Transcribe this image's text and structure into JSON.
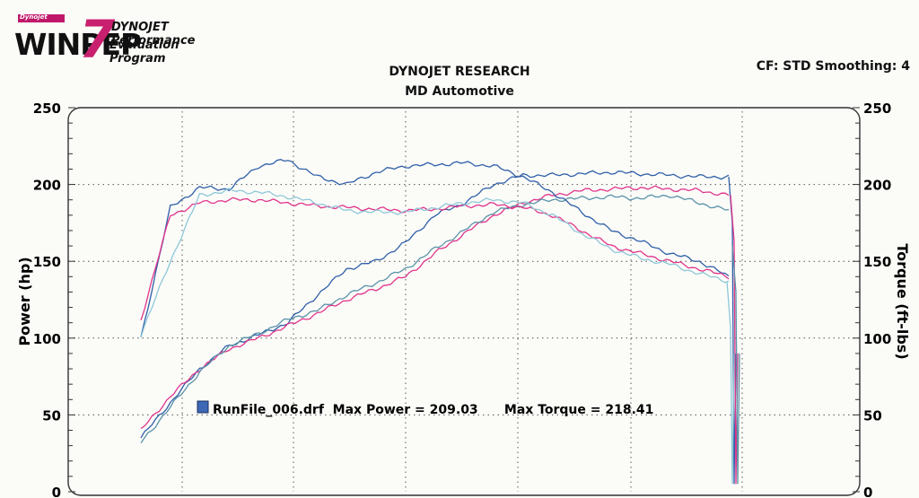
{
  "header": {
    "logo_small": "Dynojet",
    "logo_word": "WINPEP",
    "logo_number": "7",
    "logo_line1": "DYNOJET Performance",
    "logo_line2": "Evaluation Program",
    "title": "DYNOJET RESEARCH",
    "subtitle": "MD Automotive",
    "settings": "CF: STD  Smoothing: 4"
  },
  "chart_data": {
    "type": "line",
    "ylabel": "Power (hp)",
    "y2label": "Torque (ft-lbs)",
    "ylim": [
      0,
      250
    ],
    "y2lim": [
      0,
      250
    ],
    "yticks": [
      "0",
      "50",
      "100",
      "150",
      "200",
      "250"
    ],
    "y2ticks": [
      "0",
      "50",
      "100",
      "150",
      "200",
      "250"
    ],
    "grid": true,
    "legend": {
      "text": "RunFile_006.drf  Max Power = 209.03      Max Torque = 218.41",
      "placement": "bottom-left"
    },
    "x": [
      0,
      0.05,
      0.1,
      0.15,
      0.2,
      0.25,
      0.3,
      0.35,
      0.4,
      0.45,
      0.5,
      0.55,
      0.6,
      0.65,
      0.7,
      0.75,
      0.8,
      0.85,
      0.9,
      0.95,
      1.0
    ],
    "series": [
      {
        "color": "#2f5fa8",
        "role": "power",
        "values": [
          35,
          58,
          80,
          95,
          102,
          110,
          128,
          145,
          150,
          162,
          180,
          188,
          200,
          206,
          206,
          207,
          208,
          207,
          206,
          205,
          205
        ]
      },
      {
        "color": "#e0348a",
        "role": "power",
        "values": [
          40,
          62,
          80,
          93,
          100,
          108,
          116,
          125,
          132,
          140,
          155,
          168,
          180,
          188,
          193,
          196,
          197,
          198,
          197,
          196,
          193
        ]
      },
      {
        "color": "#5a93a8",
        "role": "power",
        "values": [
          32,
          55,
          78,
          95,
          103,
          112,
          118,
          128,
          136,
          145,
          158,
          170,
          182,
          187,
          190,
          191,
          192,
          191,
          193,
          188,
          183
        ]
      },
      {
        "color": "#2f5fa8",
        "role": "torque",
        "values": [
          100,
          185,
          198,
          197,
          212,
          216,
          205,
          200,
          208,
          212,
          213,
          214,
          212,
          205,
          195,
          182,
          170,
          163,
          155,
          150,
          140
        ]
      },
      {
        "color": "#e0348a",
        "role": "torque",
        "values": [
          112,
          180,
          188,
          190,
          190,
          188,
          186,
          185,
          184,
          183,
          184,
          186,
          187,
          185,
          180,
          170,
          160,
          155,
          150,
          145,
          140
        ]
      },
      {
        "color": "#8ec8d8",
        "role": "torque",
        "values": [
          102,
          150,
          193,
          196,
          195,
          192,
          188,
          183,
          182,
          182,
          185,
          188,
          190,
          188,
          180,
          168,
          158,
          152,
          148,
          142,
          137
        ]
      }
    ]
  }
}
